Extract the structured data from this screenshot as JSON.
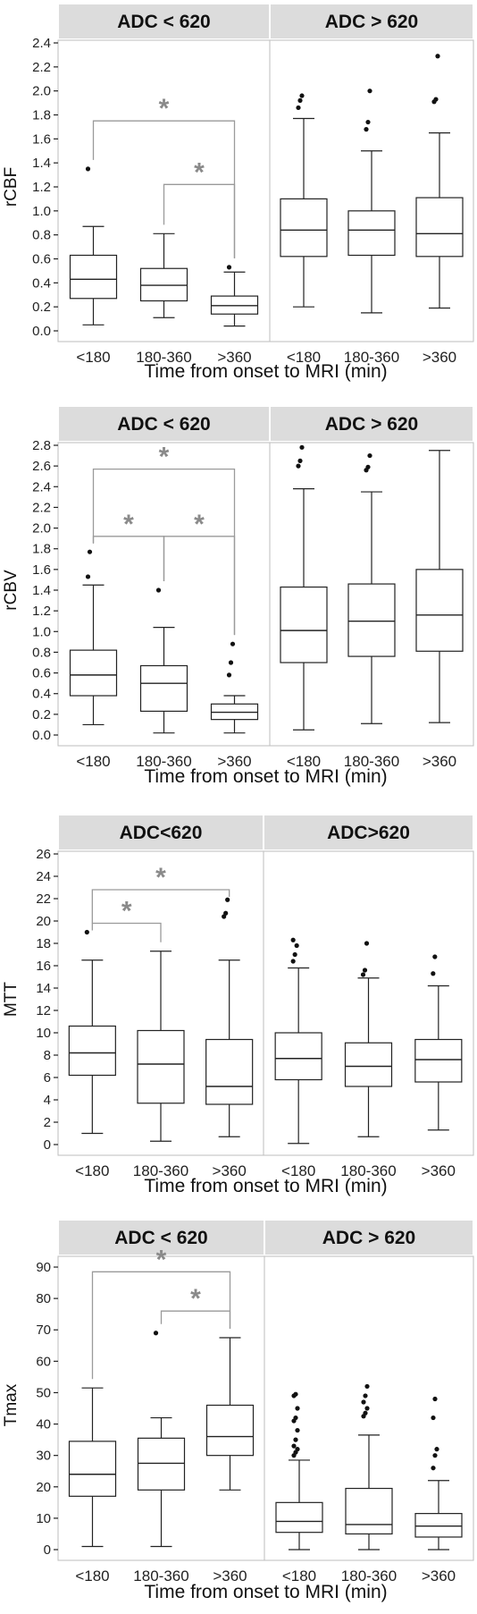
{
  "chart_data": [
    {
      "type": "box",
      "ylabel": "rCBF",
      "xlabel": "Time from onset to MRI (min)",
      "ylim": [
        0,
        2.4
      ],
      "yticks": [
        0.0,
        0.2,
        0.4,
        0.6,
        0.8,
        1.0,
        1.2,
        1.4,
        1.6,
        1.8,
        2.0,
        2.2,
        2.4
      ],
      "tick_decimals": 1,
      "categories": [
        "<180",
        "180-360",
        ">360"
      ],
      "facets": [
        {
          "title": "ADC < 620",
          "boxes": [
            {
              "min": 0.05,
              "q1": 0.27,
              "median": 0.43,
              "q3": 0.63,
              "max": 0.87,
              "outliers": [
                1.35
              ]
            },
            {
              "min": 0.11,
              "q1": 0.25,
              "median": 0.38,
              "q3": 0.52,
              "max": 0.81,
              "outliers": []
            },
            {
              "min": 0.04,
              "q1": 0.14,
              "median": 0.21,
              "q3": 0.29,
              "max": 0.49,
              "outliers": [
                0.53
              ]
            }
          ],
          "brackets": [
            {
              "from": 0,
              "to": 2,
              "y": 1.75,
              "label": "*"
            },
            {
              "from": 1,
              "to": 2,
              "y": 1.22,
              "label": "*"
            }
          ]
        },
        {
          "title": "ADC > 620",
          "boxes": [
            {
              "min": 0.2,
              "q1": 0.62,
              "median": 0.84,
              "q3": 1.1,
              "max": 1.77,
              "outliers": [
                1.86,
                1.92,
                1.96
              ]
            },
            {
              "min": 0.15,
              "q1": 0.63,
              "median": 0.84,
              "q3": 1.0,
              "max": 1.5,
              "outliers": [
                1.68,
                1.74,
                2.0
              ]
            },
            {
              "min": 0.19,
              "q1": 0.62,
              "median": 0.81,
              "q3": 1.11,
              "max": 1.65,
              "outliers": [
                1.91,
                1.93,
                2.29
              ]
            }
          ],
          "brackets": []
        }
      ]
    },
    {
      "type": "box",
      "ylabel": "rCBV",
      "xlabel": "Time from onset to MRI (min)",
      "ylim": [
        0,
        2.8
      ],
      "yticks": [
        0.0,
        0.2,
        0.4,
        0.6,
        0.8,
        1.0,
        1.2,
        1.4,
        1.6,
        1.8,
        2.0,
        2.2,
        2.4,
        2.6,
        2.8
      ],
      "tick_decimals": 1,
      "categories": [
        "<180",
        "180-360",
        ">360"
      ],
      "facets": [
        {
          "title": "ADC < 620",
          "boxes": [
            {
              "min": 0.1,
              "q1": 0.38,
              "median": 0.58,
              "q3": 0.82,
              "max": 1.45,
              "outliers": [
                1.53,
                1.77
              ]
            },
            {
              "min": 0.02,
              "q1": 0.23,
              "median": 0.5,
              "q3": 0.67,
              "max": 1.04,
              "outliers": [
                1.4
              ]
            },
            {
              "min": 0.02,
              "q1": 0.15,
              "median": 0.22,
              "q3": 0.3,
              "max": 0.38,
              "outliers": [
                0.58,
                0.7,
                0.88
              ]
            }
          ],
          "brackets": [
            {
              "from": 0,
              "to": 2,
              "y": 2.57,
              "label": "*"
            },
            {
              "from": 0,
              "to": 1,
              "y": 1.92,
              "label": "*"
            },
            {
              "from": 1,
              "to": 2,
              "y": 1.92,
              "label": "*"
            }
          ]
        },
        {
          "title": "ADC > 620",
          "boxes": [
            {
              "min": 0.05,
              "q1": 0.7,
              "median": 1.01,
              "q3": 1.43,
              "max": 2.38,
              "outliers": [
                2.6,
                2.65,
                2.78
              ]
            },
            {
              "min": 0.11,
              "q1": 0.76,
              "median": 1.1,
              "q3": 1.46,
              "max": 2.35,
              "outliers": [
                2.56,
                2.59,
                2.7
              ]
            },
            {
              "min": 0.12,
              "q1": 0.81,
              "median": 1.16,
              "q3": 1.6,
              "max": 2.75,
              "outliers": []
            }
          ],
          "brackets": []
        }
      ]
    },
    {
      "type": "box",
      "ylabel": "MTT",
      "xlabel": "Time from onset to MRI (min)",
      "ylim": [
        0,
        26
      ],
      "yticks": [
        0,
        2,
        4,
        6,
        8,
        10,
        12,
        14,
        16,
        18,
        20,
        22,
        24,
        26
      ],
      "tick_decimals": 0,
      "categories": [
        "<180",
        "180-360",
        ">360"
      ],
      "facets": [
        {
          "title": "ADC<620",
          "boxes": [
            {
              "min": 1.0,
              "q1": 6.2,
              "median": 8.2,
              "q3": 10.6,
              "max": 16.5,
              "outliers": [
                19.0
              ]
            },
            {
              "min": 0.3,
              "q1": 3.7,
              "median": 7.2,
              "q3": 10.2,
              "max": 17.3,
              "outliers": []
            },
            {
              "min": 0.7,
              "q1": 3.6,
              "median": 5.2,
              "q3": 9.4,
              "max": 16.5,
              "outliers": [
                20.4,
                20.7,
                21.9
              ]
            }
          ],
          "brackets": [
            {
              "from": 0,
              "to": 2,
              "y": 22.8,
              "label": "*"
            },
            {
              "from": 0,
              "to": 1,
              "y": 19.8,
              "label": "*"
            }
          ]
        },
        {
          "title": "ADC>620",
          "boxes": [
            {
              "min": 0.1,
              "q1": 5.8,
              "median": 7.7,
              "q3": 10.0,
              "max": 15.8,
              "outliers": [
                16.4,
                17.0,
                17.8,
                18.3
              ]
            },
            {
              "min": 0.7,
              "q1": 5.2,
              "median": 7.0,
              "q3": 9.1,
              "max": 14.9,
              "outliers": [
                15.2,
                15.6,
                18.0
              ]
            },
            {
              "min": 1.3,
              "q1": 5.6,
              "median": 7.6,
              "q3": 9.4,
              "max": 14.2,
              "outliers": [
                15.3,
                16.8
              ]
            }
          ],
          "brackets": []
        }
      ]
    },
    {
      "type": "box",
      "ylabel": "Tmax",
      "xlabel": "Time from onset to MRI (min)",
      "ylim": [
        0,
        92
      ],
      "yticks": [
        0,
        10,
        20,
        30,
        40,
        50,
        60,
        70,
        80,
        90
      ],
      "tick_decimals": 0,
      "categories": [
        "<180",
        "180-360",
        ">360"
      ],
      "facets": [
        {
          "title": "ADC < 620",
          "boxes": [
            {
              "min": 1.0,
              "q1": 17.0,
              "median": 24.0,
              "q3": 34.5,
              "max": 51.5,
              "outliers": []
            },
            {
              "min": 1.0,
              "q1": 19.0,
              "median": 27.5,
              "q3": 35.5,
              "max": 42.0,
              "outliers": [
                69.0
              ]
            },
            {
              "min": 19.0,
              "q1": 30.0,
              "median": 36.0,
              "q3": 46.0,
              "max": 67.5,
              "outliers": []
            }
          ],
          "brackets": [
            {
              "from": 0,
              "to": 2,
              "y": 88.5,
              "label": "*"
            },
            {
              "from": 1,
              "to": 2,
              "y": 76.0,
              "label": "*"
            }
          ]
        },
        {
          "title": "ADC > 620",
          "boxes": [
            {
              "min": 0.0,
              "q1": 5.5,
              "median": 9.0,
              "q3": 15.0,
              "max": 28.5,
              "outliers": [
                30,
                31,
                32,
                33,
                35,
                38,
                41,
                42,
                45,
                49,
                49.5
              ]
            },
            {
              "min": 0.0,
              "q1": 5.0,
              "median": 8.0,
              "q3": 19.5,
              "max": 36.5,
              "outliers": [
                42.5,
                43.5,
                45,
                47,
                49,
                52
              ]
            },
            {
              "min": 0.0,
              "q1": 4.0,
              "median": 7.5,
              "q3": 11.5,
              "max": 22.0,
              "outliers": [
                26,
                30,
                32,
                42,
                48
              ]
            }
          ],
          "brackets": []
        }
      ]
    }
  ]
}
